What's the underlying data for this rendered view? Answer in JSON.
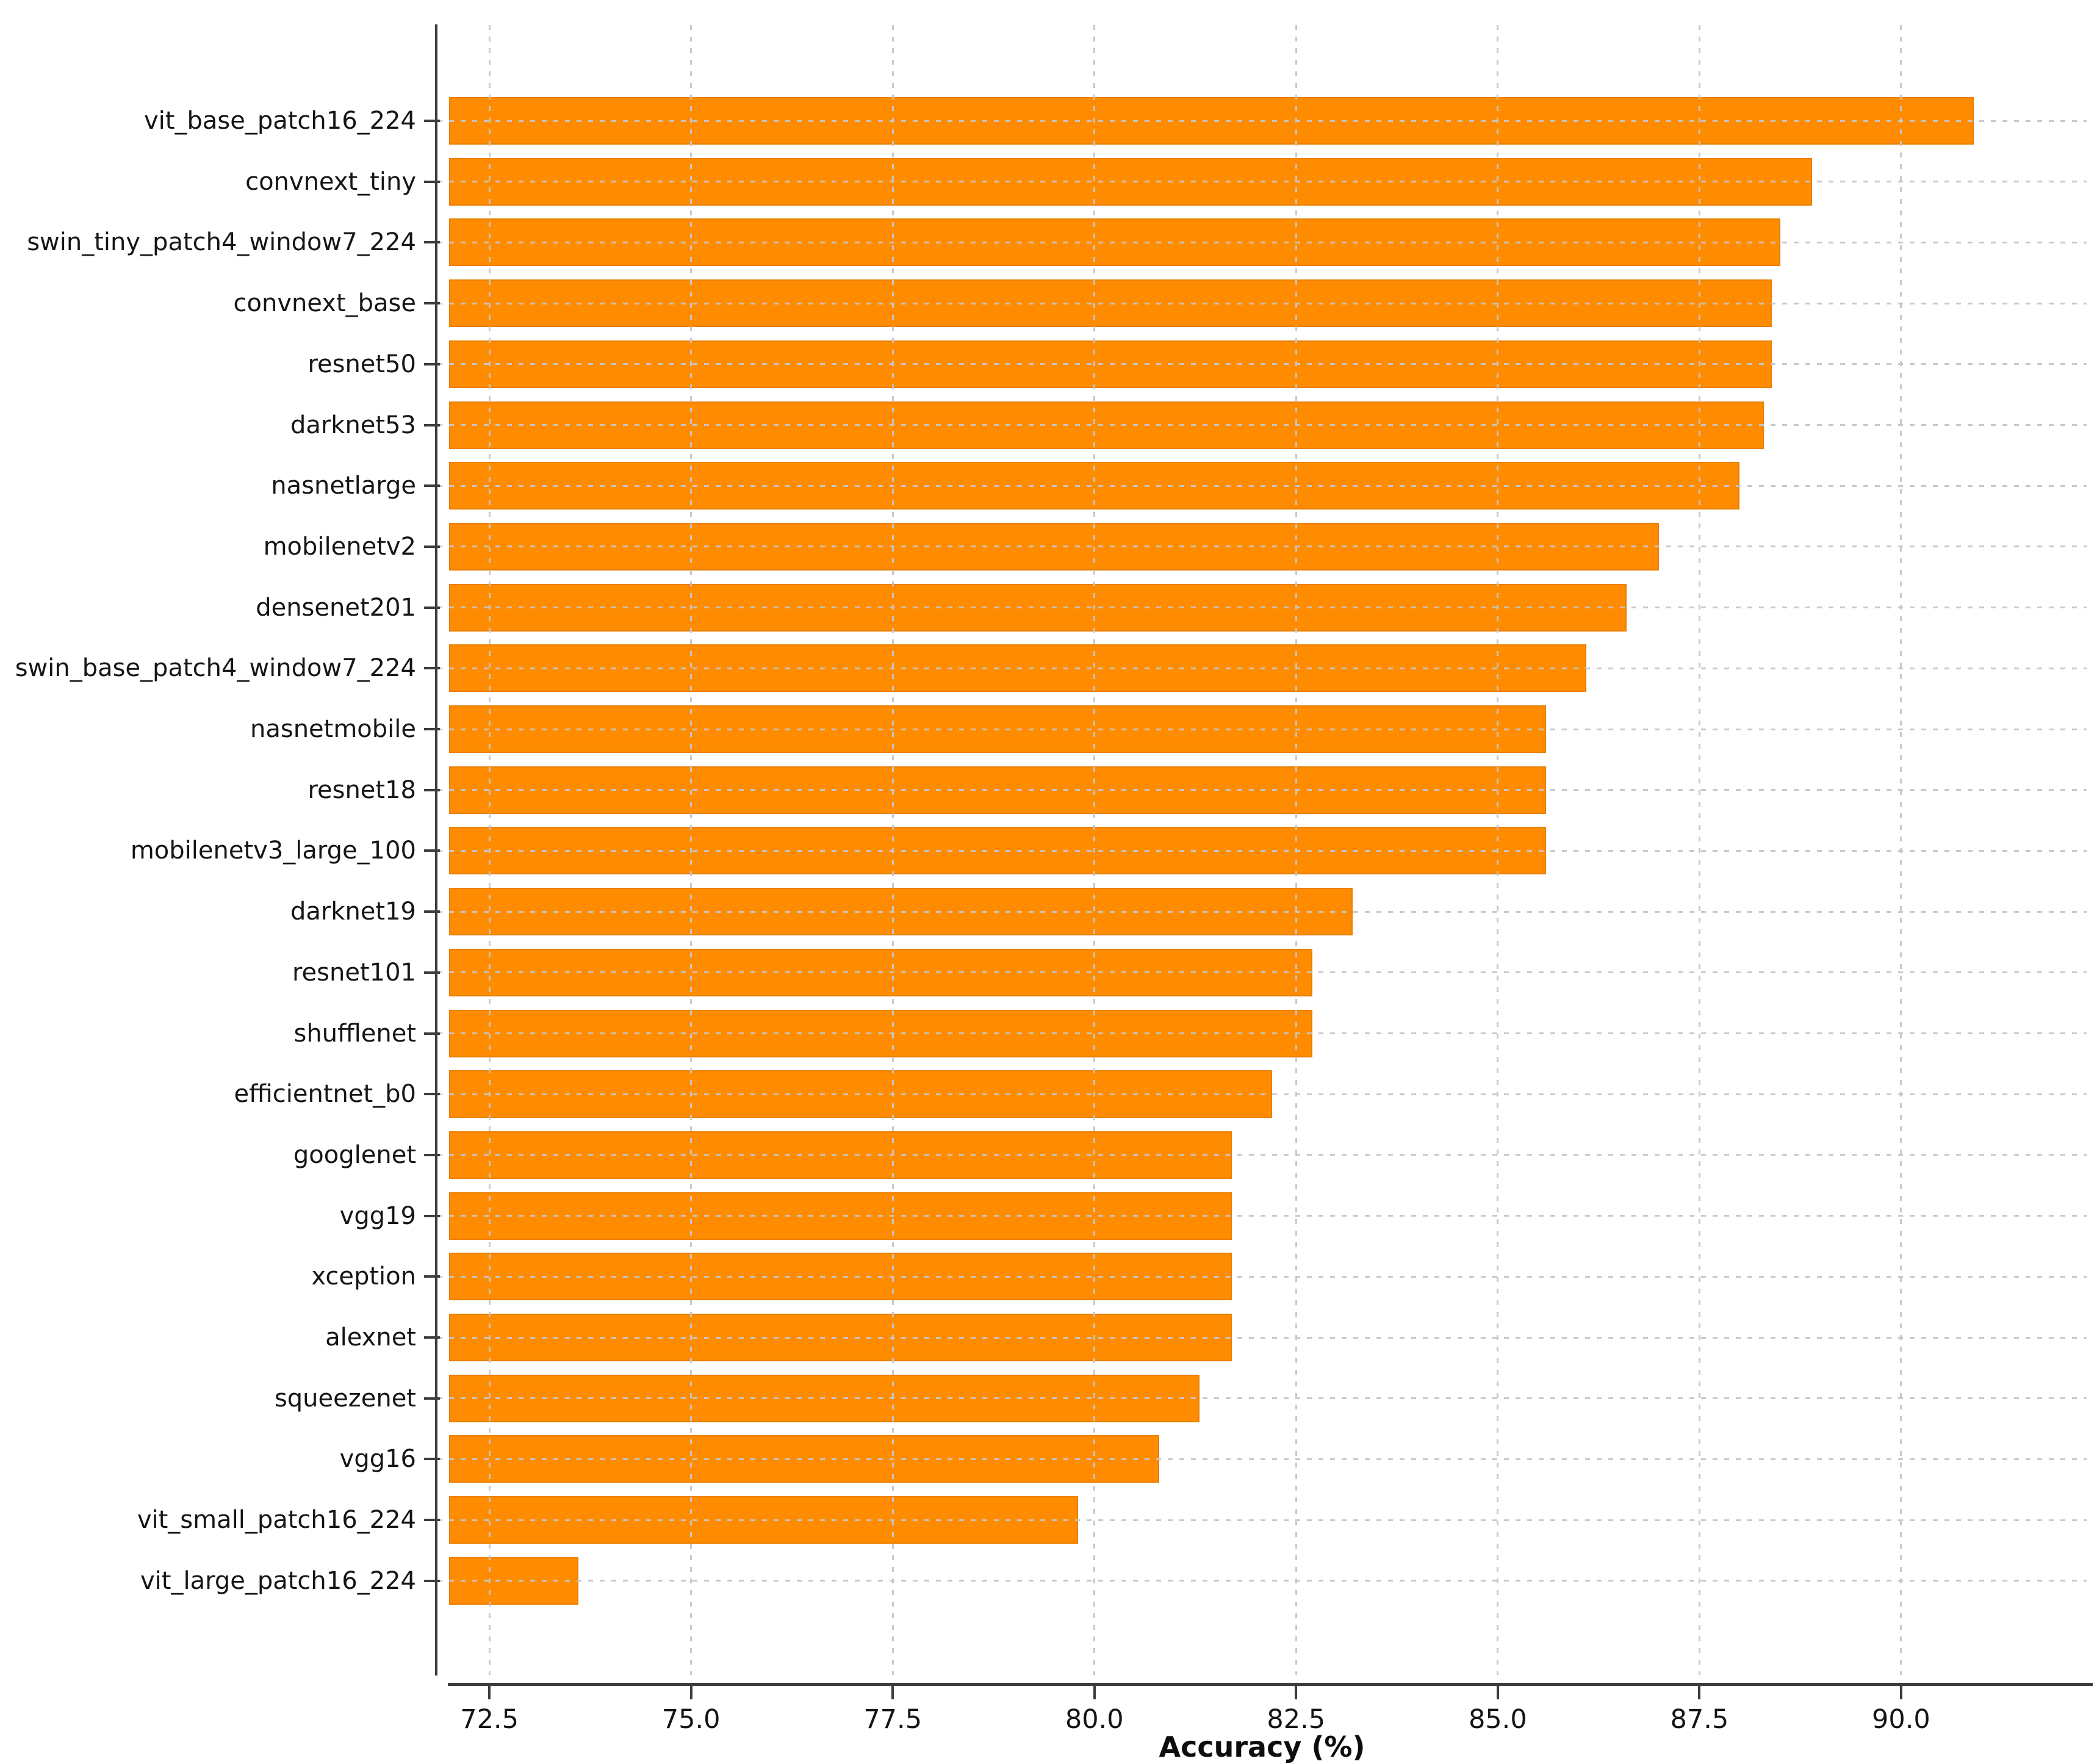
{
  "chart_data": {
    "type": "bar",
    "orientation": "horizontal",
    "title": "",
    "xlabel": "Accuracy (%)",
    "ylabel": "",
    "categories": [
      "vit_base_patch16_224",
      "convnext_tiny",
      "swin_tiny_patch4_window7_224",
      "convnext_base",
      "resnet50",
      "darknet53",
      "nasnetlarge",
      "mobilenetv2",
      "densenet201",
      "swin_base_patch4_window7_224",
      "nasnetmobile",
      "resnet18",
      "mobilenetv3_large_100",
      "darknet19",
      "resnet101",
      "shufflenet",
      "efficientnet_b0",
      "googlenet",
      "vgg19",
      "xception",
      "alexnet",
      "squeezenet",
      "vgg16",
      "vit_small_patch16_224",
      "vit_large_patch16_224"
    ],
    "values": [
      90.9,
      88.9,
      88.5,
      88.4,
      88.4,
      88.3,
      88.0,
      87.0,
      86.6,
      86.1,
      85.6,
      85.6,
      85.6,
      83.2,
      82.7,
      82.7,
      82.2,
      81.7,
      81.7,
      81.7,
      81.7,
      81.3,
      80.8,
      79.8,
      73.6
    ],
    "x_ticks": [
      72.5,
      75.0,
      77.5,
      80.0,
      82.5,
      85.0,
      87.5,
      90.0
    ],
    "xlim": [
      72.0,
      92.3
    ],
    "bar_color": "#ff8c00",
    "grid": {
      "visible": true,
      "style": "dashed",
      "color": "#c6c6c6",
      "axes": "both",
      "above_bars": true
    },
    "axis_color": "#3d3d3d",
    "text_color": "#151515",
    "legend": null
  }
}
